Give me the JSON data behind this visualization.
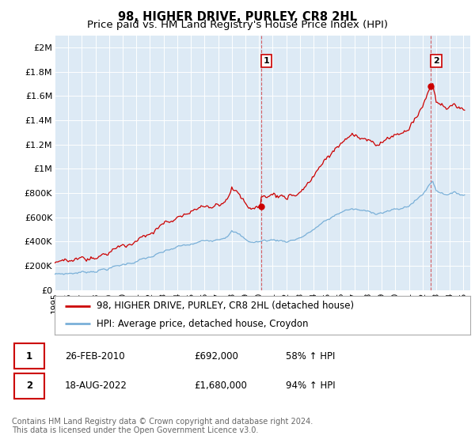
{
  "title": "98, HIGHER DRIVE, PURLEY, CR8 2HL",
  "subtitle": "Price paid vs. HM Land Registry's House Price Index (HPI)",
  "ylabel_ticks": [
    "£0",
    "£200K",
    "£400K",
    "£600K",
    "£800K",
    "£1M",
    "£1.2M",
    "£1.4M",
    "£1.6M",
    "£1.8M",
    "£2M"
  ],
  "ytick_values": [
    0,
    200000,
    400000,
    600000,
    800000,
    1000000,
    1200000,
    1400000,
    1600000,
    1800000,
    2000000
  ],
  "ylim": [
    0,
    2100000
  ],
  "xlim_start": 1995.0,
  "xlim_end": 2025.5,
  "hpi_color": "#7ab0d8",
  "price_color": "#cc0000",
  "dashed_color": "#cc0000",
  "background_color": "#ddeaf5",
  "legend_label_price": "98, HIGHER DRIVE, PURLEY, CR8 2HL (detached house)",
  "legend_label_hpi": "HPI: Average price, detached house, Croydon",
  "sale1_date": "26-FEB-2010",
  "sale1_price": "£692,000",
  "sale1_pct": "58% ↑ HPI",
  "sale2_date": "18-AUG-2022",
  "sale2_price": "£1,680,000",
  "sale2_pct": "94% ↑ HPI",
  "footnote": "Contains HM Land Registry data © Crown copyright and database right 2024.\nThis data is licensed under the Open Government Licence v3.0.",
  "title_fontsize": 10.5,
  "subtitle_fontsize": 9.5,
  "tick_fontsize": 8,
  "legend_fontsize": 8.5,
  "table_fontsize": 8.5,
  "footnote_fontsize": 7
}
